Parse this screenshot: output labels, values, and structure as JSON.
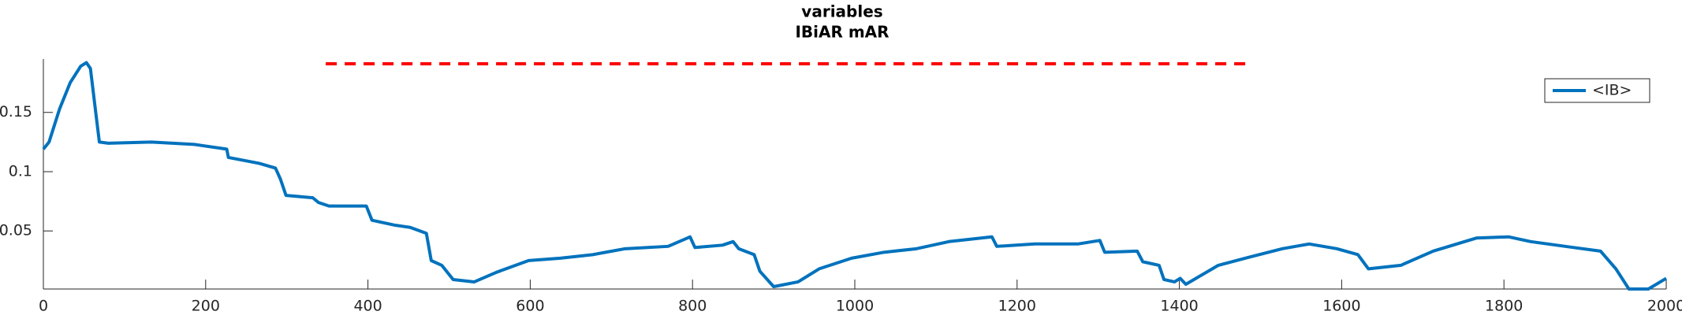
{
  "chart_data": {
    "type": "line",
    "title": "variables",
    "subtitle": "IBiAR mAR",
    "xlim": [
      0,
      2000
    ],
    "xticks": [
      0,
      200,
      400,
      600,
      800,
      1000,
      1200,
      1400,
      1600,
      1800,
      2000
    ],
    "ylim": [
      0.001,
      0.195
    ],
    "yticks": [
      0.05,
      0.1,
      0.15
    ],
    "legend_position": "upper right",
    "series": [
      {
        "name": "<IB>",
        "color": "#0072bd",
        "x": [
          0,
          7,
          20,
          33,
          46,
          53,
          58,
          64,
          69,
          80,
          133,
          186,
          226,
          228,
          266,
          286,
          292,
          299,
          332,
          339,
          352,
          398,
          405,
          432,
          452,
          472,
          478,
          491,
          505,
          531,
          558,
          598,
          637,
          677,
          717,
          770,
          797,
          803,
          837,
          850,
          857,
          876,
          883,
          900,
          930,
          956,
          996,
          1036,
          1076,
          1116,
          1169,
          1175,
          1222,
          1275,
          1302,
          1308,
          1348,
          1355,
          1375,
          1381,
          1394,
          1401,
          1408,
          1448,
          1487,
          1527,
          1560,
          1594,
          1620,
          1633,
          1673,
          1713,
          1766,
          1806,
          1833,
          1886,
          1919,
          1938,
          1954,
          1978,
          2000
        ],
        "values": [
          0.119,
          0.125,
          0.153,
          0.175,
          0.189,
          0.192,
          0.187,
          0.153,
          0.125,
          0.124,
          0.125,
          0.123,
          0.119,
          0.112,
          0.107,
          0.103,
          0.094,
          0.08,
          0.078,
          0.074,
          0.071,
          0.071,
          0.059,
          0.055,
          0.053,
          0.048,
          0.025,
          0.021,
          0.009,
          0.007,
          0.015,
          0.025,
          0.027,
          0.03,
          0.035,
          0.037,
          0.045,
          0.036,
          0.038,
          0.041,
          0.035,
          0.03,
          0.016,
          0.003,
          0.007,
          0.018,
          0.027,
          0.032,
          0.035,
          0.041,
          0.045,
          0.037,
          0.039,
          0.039,
          0.042,
          0.032,
          0.033,
          0.024,
          0.021,
          0.009,
          0.007,
          0.01,
          0.005,
          0.021,
          0.028,
          0.035,
          0.039,
          0.035,
          0.03,
          0.018,
          0.021,
          0.033,
          0.044,
          0.045,
          0.041,
          0.036,
          0.033,
          0.018,
          0.001,
          0.001,
          0.01
        ]
      }
    ],
    "reference_line": {
      "color": "#ff0000",
      "x": [
        348,
        1487
      ],
      "values": [
        0.191,
        0.191
      ]
    }
  }
}
